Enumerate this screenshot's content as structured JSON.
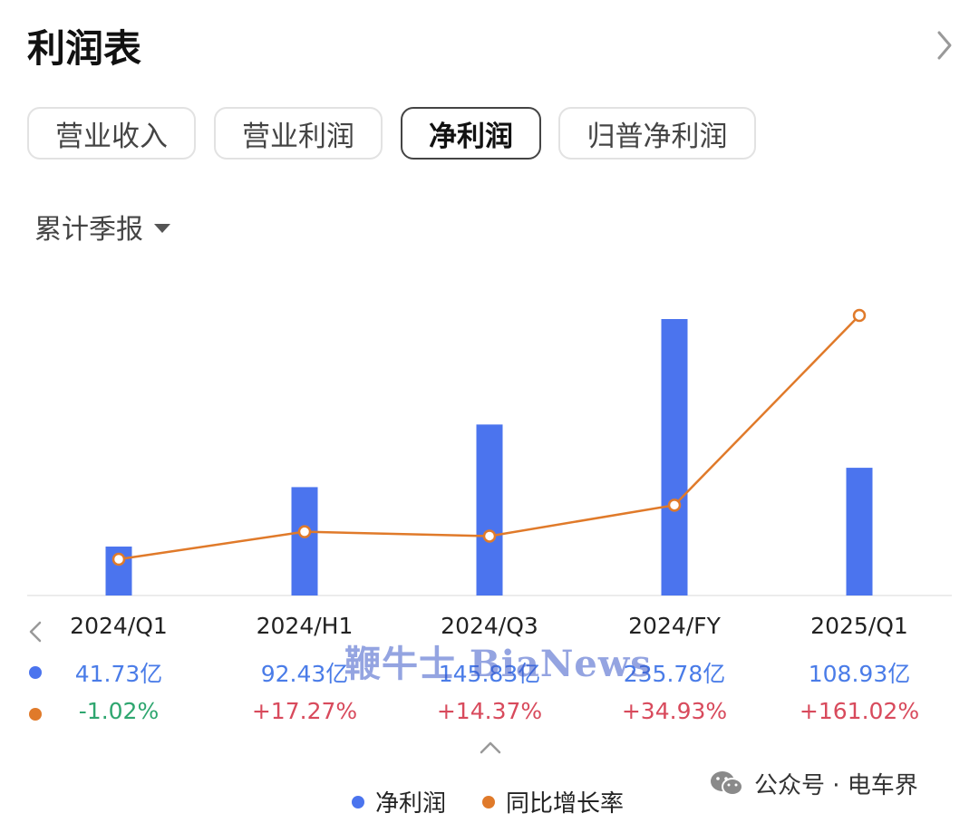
{
  "header": {
    "title": "利润表"
  },
  "tabs": [
    {
      "label": "营业收入",
      "active": false
    },
    {
      "label": "营业利润",
      "active": false
    },
    {
      "label": "净利润",
      "active": true
    },
    {
      "label": "归普净利润",
      "active": false
    }
  ],
  "period_selector": {
    "label": "累计季报"
  },
  "colors": {
    "bar": "#4b74ee",
    "line": "#e07a2a",
    "positive": "#d84a5c",
    "negative": "#2ea66f"
  },
  "chart_data": {
    "type": "bar",
    "categories": [
      "2024/Q1",
      "2024/H1",
      "2024/Q3",
      "2024/FY",
      "2025/Q1"
    ],
    "series": [
      {
        "name": "净利润",
        "type": "bar",
        "values": [
          41.73,
          92.43,
          145.83,
          235.78,
          108.93
        ],
        "unit": "亿"
      },
      {
        "name": "同比增长率",
        "type": "line",
        "values": [
          -1.02,
          17.27,
          14.37,
          34.93,
          161.02
        ],
        "unit": "%"
      }
    ]
  },
  "table": {
    "values": [
      "41.73亿",
      "92.43亿",
      "145.83亿",
      "235.78亿",
      "108.93亿"
    ],
    "growth": [
      "-1.02%",
      "+17.27%",
      "+14.37%",
      "+34.93%",
      "+161.02%"
    ]
  },
  "legend": {
    "items": [
      "净利润",
      "同比增长率"
    ]
  },
  "watermark": "鞭牛士 BiaNews",
  "footer": {
    "brand": "公众号 · 电车界"
  }
}
